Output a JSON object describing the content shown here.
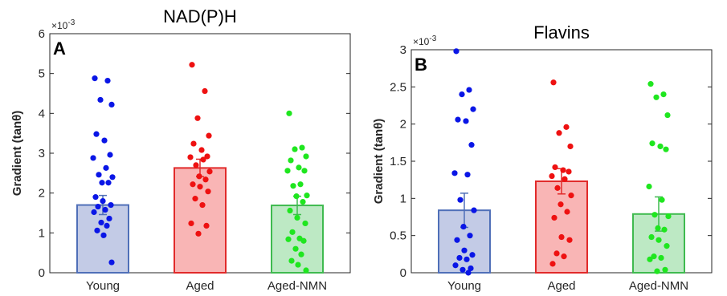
{
  "chart_data": [
    {
      "type": "bar",
      "panel_label": "A",
      "title": "NAD(P)H",
      "ylabel": "Gradient (tanθ)",
      "y_multiplier": "×10",
      "y_multiplier_exp": "-3",
      "categories": [
        "Young",
        "Aged",
        "Aged-NMN"
      ],
      "values": [
        1.7,
        2.63,
        1.69
      ],
      "errors": [
        0.24,
        0.22,
        0.23
      ],
      "ylim": [
        0,
        6
      ],
      "yticks": [
        0,
        1,
        2,
        3,
        4,
        5,
        6
      ],
      "ytick_labels": [
        "0",
        "1",
        "2",
        "3",
        "4",
        "5",
        "6"
      ],
      "colors": {
        "Young": {
          "fill": "#c3cbe6",
          "edge": "#4f6fb8",
          "dot": "#0a16e6"
        },
        "Aged": {
          "fill": "#f9b5b5",
          "edge": "#e12a2a",
          "dot": "#ee1111"
        },
        "Aged-NMN": {
          "fill": "#bde9c4",
          "edge": "#3fba4f",
          "dot": "#1fe61f"
        }
      },
      "points": [
        [
          4.88,
          4.82,
          4.34,
          4.22,
          3.48,
          3.32,
          2.96,
          2.88,
          2.63,
          2.46,
          2.4,
          2.26,
          2.26,
          1.9,
          1.8,
          1.7,
          1.66,
          1.58,
          1.52,
          1.36,
          1.26,
          1.18,
          1.06,
          0.94,
          0.26
        ],
        [
          5.22,
          4.56,
          3.88,
          3.44,
          3.24,
          3.08,
          2.92,
          2.9,
          2.84,
          2.7,
          2.54,
          2.42,
          2.34,
          2.22,
          2.16,
          2.04,
          1.86,
          1.7,
          1.24,
          1.18,
          0.98
        ],
        [
          4.0,
          3.14,
          3.1,
          2.92,
          2.82,
          2.64,
          2.56,
          2.56,
          2.22,
          2.18,
          1.94,
          1.92,
          1.78,
          1.56,
          1.38,
          1.24,
          1.02,
          0.86,
          0.84,
          0.8,
          0.6,
          0.46,
          0.3,
          0.2,
          0.06
        ]
      ]
    },
    {
      "type": "bar",
      "panel_label": "B",
      "title": "Flavins",
      "ylabel": "Gradient (tanθ)",
      "y_multiplier": "×10",
      "y_multiplier_exp": "-3",
      "categories": [
        "Young",
        "Aged",
        "Aged-NMN"
      ],
      "values": [
        0.84,
        1.23,
        0.79
      ],
      "errors": [
        0.23,
        0.17,
        0.23
      ],
      "ylim": [
        0,
        3
      ],
      "yticks": [
        0,
        0.5,
        1,
        1.5,
        2,
        2.5,
        3
      ],
      "ytick_labels": [
        "0",
        "0.5",
        "1",
        "1.5",
        "2",
        "2.5",
        "3"
      ],
      "colors": {
        "Young": {
          "fill": "#c3cbe6",
          "edge": "#4f6fb8",
          "dot": "#0a16e6"
        },
        "Aged": {
          "fill": "#f9b5b5",
          "edge": "#e12a2a",
          "dot": "#ee1111"
        },
        "Aged-NMN": {
          "fill": "#bde9c4",
          "edge": "#3fba4f",
          "dot": "#1fe61f"
        }
      },
      "points": [
        [
          2.98,
          2.46,
          2.4,
          2.2,
          2.06,
          2.04,
          1.72,
          1.34,
          1.32,
          0.98,
          0.84,
          0.62,
          0.5,
          0.44,
          0.3,
          0.24,
          0.2,
          0.18,
          0.1,
          0.06,
          0.04,
          0.0
        ],
        [
          2.56,
          1.96,
          1.88,
          1.7,
          1.42,
          1.38,
          1.36,
          1.3,
          1.26,
          1.14,
          1.04,
          0.92,
          0.82,
          0.74,
          0.48,
          0.44,
          0.26,
          0.22,
          0.12
        ],
        [
          2.54,
          2.4,
          2.36,
          2.12,
          1.74,
          1.7,
          1.66,
          1.16,
          0.98,
          0.78,
          0.76,
          0.6,
          0.58,
          0.48,
          0.44,
          0.36,
          0.22,
          0.2,
          0.18,
          0.04,
          0.02
        ]
      ]
    }
  ]
}
